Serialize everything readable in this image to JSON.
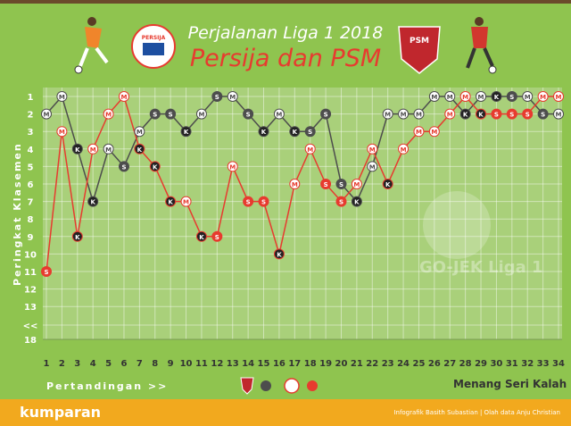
{
  "header": {
    "title": "Perjalanan Liga 1 2018",
    "subtitle": "Persija dan PSM",
    "logo_left_text": "PERSIJA",
    "logo_right_text": "PSM"
  },
  "axis": {
    "ylabel": "Peringkat Klasemen",
    "xlabel": "Pertandingan >>",
    "watermark": "GO-JEK Liga 1"
  },
  "legend": {
    "result_key": "Menang Seri Kalah",
    "markers": [
      {
        "team": "PSM",
        "color": "#4d4d4d"
      },
      {
        "team": "Persija",
        "color": "#e73b2f"
      }
    ]
  },
  "footer": {
    "brand": "kumparan",
    "credit": "Infografik Basith Subastian | Olah data Anju Christian"
  },
  "colors": {
    "psm": "#4d4d4d",
    "persija": "#e73b2f",
    "plot_bg": "#a9d07a",
    "background": "#8fc44f",
    "footer": "#f2a91e"
  },
  "chart_data": {
    "type": "line",
    "x": [
      1,
      2,
      3,
      4,
      5,
      6,
      7,
      8,
      9,
      10,
      11,
      12,
      13,
      14,
      15,
      16,
      17,
      18,
      19,
      20,
      21,
      22,
      23,
      24,
      25,
      26,
      27,
      28,
      29,
      30,
      31,
      32,
      33,
      34
    ],
    "ytick_labels": [
      "1",
      "2",
      "3",
      "4",
      "5",
      "6",
      "7",
      "8",
      "9",
      "10",
      "11",
      "12",
      "13",
      "<<",
      "18"
    ],
    "ylim": [
      1,
      18
    ],
    "reversed_y": true,
    "grid": true,
    "series": [
      {
        "name": "PSM",
        "ranks": [
          2,
          1,
          4,
          7,
          4,
          5,
          3,
          2,
          2,
          3,
          2,
          1,
          1,
          2,
          3,
          2,
          3,
          3,
          2,
          6,
          7,
          5,
          2,
          2,
          2,
          1,
          1,
          2,
          1,
          1,
          1,
          1,
          2,
          2
        ],
        "results": [
          "M",
          "M",
          "K",
          "K",
          "M",
          "S",
          "M",
          "S",
          "S",
          "K",
          "M",
          "S",
          "M",
          "S",
          "K",
          "M",
          "K",
          "S",
          "S",
          "S",
          "K",
          "M",
          "M",
          "M",
          "M",
          "M",
          "M",
          "K",
          "M",
          "K",
          "S",
          "M",
          "S",
          "M"
        ]
      },
      {
        "name": "Persija",
        "ranks": [
          11,
          3,
          9,
          4,
          2,
          1,
          4,
          5,
          7,
          7,
          9,
          9,
          5,
          7,
          7,
          10,
          6,
          4,
          6,
          7,
          6,
          4,
          6,
          4,
          3,
          3,
          2,
          1,
          2,
          2,
          2,
          2,
          1,
          1
        ],
        "results": [
          "S",
          "M",
          "K",
          "M",
          "M",
          "M",
          "K",
          "K",
          "K",
          "M",
          "K",
          "S",
          "M",
          "S",
          "S",
          "K",
          "M",
          "M",
          "S",
          "S",
          "M",
          "M",
          "K",
          "M",
          "M",
          "M",
          "M",
          "M",
          "K",
          "S",
          "S",
          "S",
          "M",
          "M"
        ]
      }
    ]
  }
}
